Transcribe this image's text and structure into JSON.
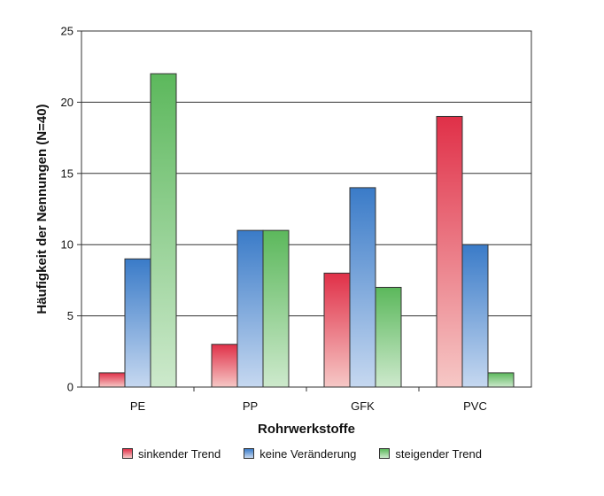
{
  "chart_data": {
    "type": "bar",
    "categories": [
      "PE",
      "PP",
      "GFK",
      "PVC"
    ],
    "series": [
      {
        "name": "sinkender Trend",
        "values": [
          1,
          3,
          8,
          19
        ],
        "color_top": "#e03048",
        "color_bottom": "#f6c8c6"
      },
      {
        "name": "keine Veränderung",
        "values": [
          9,
          11,
          14,
          10
        ],
        "color_top": "#3a7bc8",
        "color_bottom": "#c6d8f0"
      },
      {
        "name": "steigender Trend",
        "values": [
          22,
          11,
          7,
          1
        ],
        "color_top": "#5cb85c",
        "color_bottom": "#cde9cc"
      }
    ],
    "xlabel": "Rohrwerkstoffe",
    "ylabel": "Häufigkeit der Nennungen (N=40)",
    "ylim": [
      0,
      25
    ],
    "yticks": [
      0,
      5,
      10,
      15,
      20,
      25
    ],
    "grid": true,
    "legend_position": "bottom"
  }
}
